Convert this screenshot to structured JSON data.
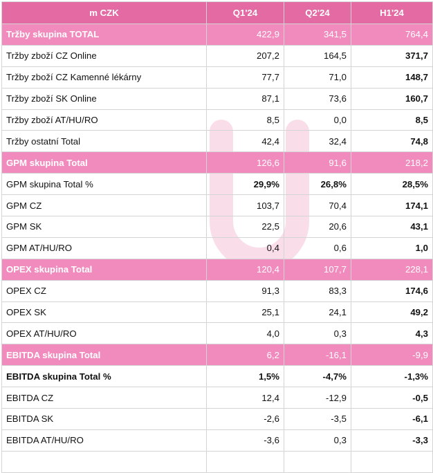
{
  "header": {
    "label": "m CZK",
    "cols": [
      "Q1'24",
      "Q2'24",
      "H1'24"
    ]
  },
  "rows": [
    {
      "type": "group",
      "label": "Tržby skupina TOTAL",
      "values": [
        "422,9",
        "341,5",
        "764,4"
      ]
    },
    {
      "type": "item",
      "label": "Tržby zboží CZ Online",
      "values": [
        "207,2",
        "164,5",
        "371,7"
      ]
    },
    {
      "type": "item",
      "label": "Tržby zboží CZ Kamenné lékárny",
      "values": [
        "77,7",
        "71,0",
        "148,7"
      ]
    },
    {
      "type": "item",
      "label": "Tržby zboží SK Online",
      "values": [
        "87,1",
        "73,6",
        "160,7"
      ]
    },
    {
      "type": "item",
      "label": "Tržby zboží AT/HU/RO",
      "values": [
        "8,5",
        "0,0",
        "8,5"
      ]
    },
    {
      "type": "item",
      "label": "Tržby ostatní Total",
      "values": [
        "42,4",
        "32,4",
        "74,8"
      ]
    },
    {
      "type": "group",
      "label": "GPM skupina Total",
      "values": [
        "126,6",
        "91,6",
        "218,2"
      ]
    },
    {
      "type": "pct",
      "label": "GPM skupina Total %",
      "values": [
        "29,9%",
        "26,8%",
        "28,5%"
      ]
    },
    {
      "type": "item",
      "label": "GPM CZ",
      "values": [
        "103,7",
        "70,4",
        "174,1"
      ]
    },
    {
      "type": "item",
      "label": "GPM SK",
      "values": [
        "22,5",
        "20,6",
        "43,1"
      ]
    },
    {
      "type": "item",
      "label": "GPM AT/HU/RO",
      "values": [
        "0,4",
        "0,6",
        "1,0"
      ]
    },
    {
      "type": "group",
      "label": "OPEX skupina Total",
      "values": [
        "120,4",
        "107,7",
        "228,1"
      ]
    },
    {
      "type": "item",
      "label": "OPEX CZ",
      "values": [
        "91,3",
        "83,3",
        "174,6"
      ]
    },
    {
      "type": "item",
      "label": "OPEX SK",
      "values": [
        "25,1",
        "24,1",
        "49,2"
      ]
    },
    {
      "type": "item",
      "label": "OPEX AT/HU/RO",
      "values": [
        "4,0",
        "0,3",
        "4,3"
      ]
    },
    {
      "type": "group",
      "label": "EBITDA skupina Total",
      "values": [
        "6,2",
        "-16,1",
        "-9,9"
      ]
    },
    {
      "type": "strong",
      "label": "EBITDA skupina Total %",
      "values": [
        "1,5%",
        "-4,7%",
        "-1,3%"
      ]
    },
    {
      "type": "item",
      "label": "EBITDA CZ",
      "values": [
        "12,4",
        "-12,9",
        "-0,5"
      ]
    },
    {
      "type": "item",
      "label": "EBITDA SK",
      "values": [
        "-2,6",
        "-3,5",
        "-6,1"
      ]
    },
    {
      "type": "item",
      "label": "EBITDA AT/HU/RO",
      "values": [
        "-3,6",
        "0,3",
        "-3,3"
      ]
    },
    {
      "type": "spacer",
      "label": "",
      "values": [
        "",
        "",
        ""
      ]
    }
  ],
  "colors": {
    "header": "#e36aa2",
    "group_row": "#f28bbd",
    "watermark": "#f7d2e2"
  }
}
